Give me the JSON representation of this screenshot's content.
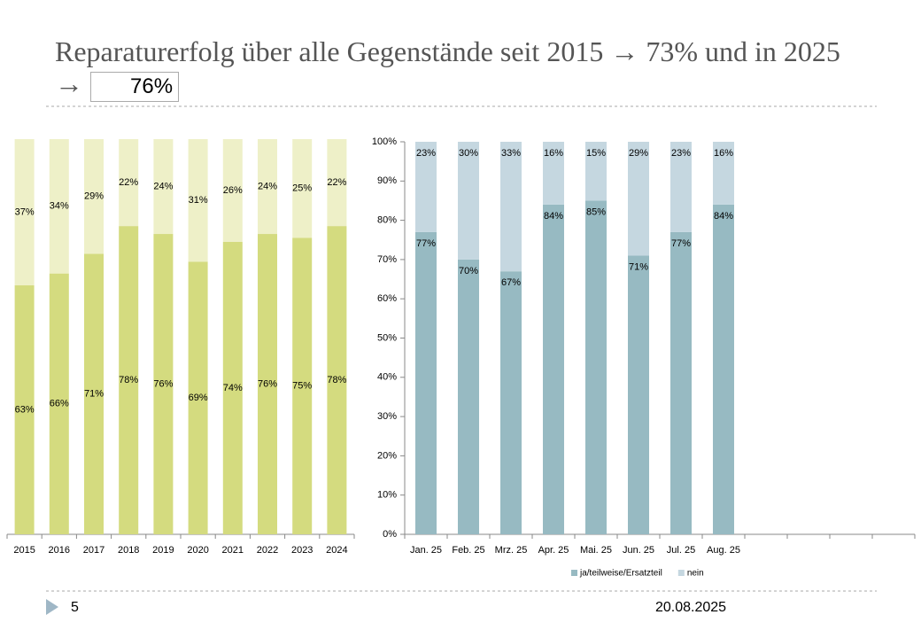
{
  "title": "Reparaturerfolg über alle Gegenstände seit 2015 → 73% und in 2025 →",
  "highlight": "76%",
  "slide_number": "5",
  "date": "20.08.2025",
  "chart_data": [
    {
      "type": "bar",
      "stacked": true,
      "categories": [
        "2015",
        "2016",
        "2017",
        "2018",
        "2019",
        "2020",
        "2021",
        "2022",
        "2023",
        "2024"
      ],
      "series": [
        {
          "color": "#d4db7f",
          "values": [
            63,
            66,
            71,
            78,
            76,
            69,
            74,
            76,
            75,
            78
          ],
          "value_labels": [
            "63%",
            "66%",
            "71%",
            "78%",
            "76%",
            "69%",
            "74%",
            "76%",
            "75%",
            "78%"
          ]
        },
        {
          "color": "#eef0c8",
          "values": [
            37,
            34,
            29,
            22,
            24,
            31,
            26,
            24,
            25,
            22
          ],
          "value_labels": [
            "37%",
            "34%",
            "29%",
            "22%",
            "24%",
            "31%",
            "26%",
            "24%",
            "25%",
            "22%"
          ]
        }
      ]
    },
    {
      "type": "bar",
      "stacked": true,
      "categories": [
        "Jan. 25",
        "Feb. 25",
        "Mrz. 25",
        "Apr. 25",
        "Mai. 25",
        "Jun. 25",
        "Jul. 25",
        "Aug. 25",
        null,
        null,
        null,
        null
      ],
      "ylim": [
        0,
        100
      ],
      "yticks": [
        {
          "value": 0,
          "label": "0%"
        },
        {
          "value": 10,
          "label": "10%"
        },
        {
          "value": 20,
          "label": "20%"
        },
        {
          "value": 30,
          "label": "30%"
        },
        {
          "value": 40,
          "label": "40%"
        },
        {
          "value": 50,
          "label": "50%"
        },
        {
          "value": 60,
          "label": "60%"
        },
        {
          "value": 70,
          "label": "70%"
        },
        {
          "value": 80,
          "label": "80%"
        },
        {
          "value": 90,
          "label": "90%"
        },
        {
          "value": 100,
          "label": "100%"
        }
      ],
      "legend": "bottom",
      "series": [
        {
          "name": "ja/teilweise/Ersatzteil",
          "color": "#97bac2",
          "values": [
            77,
            70,
            67,
            84,
            85,
            71,
            77,
            84,
            null,
            null,
            null,
            null
          ],
          "value_labels": [
            "77%",
            "70%",
            "67%",
            "84%",
            "85%",
            "71%",
            "77%",
            "84%",
            null,
            null,
            null,
            null
          ]
        },
        {
          "name": "nein",
          "color": "#c5d7e0",
          "values": [
            23,
            30,
            33,
            16,
            15,
            29,
            23,
            16,
            null,
            null,
            null,
            null
          ],
          "value_labels": [
            "23%",
            "30%",
            "33%",
            "16%",
            "15%",
            "29%",
            "23%",
            "16%",
            null,
            null,
            null,
            null
          ]
        }
      ]
    }
  ]
}
